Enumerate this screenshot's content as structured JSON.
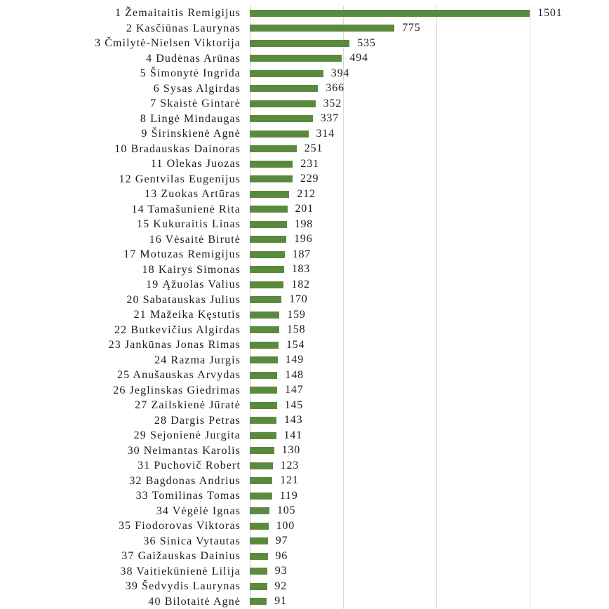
{
  "chart_data": {
    "type": "bar",
    "orientation": "horizontal",
    "title": "",
    "xlabel": "",
    "ylabel": "",
    "xlim": [
      0,
      1925
    ],
    "grid": true,
    "legend": false,
    "gridline_values": [
      500,
      1000,
      1500
    ],
    "bar_color": "#5a8a3e",
    "gridline_color": "#d9d9d9",
    "axis_line_color": "#d0d0d0",
    "text_color": "#1c1c1c",
    "value_labels_shown": true,
    "categories": [
      "1 Žemaitaitis Remigijus",
      "2 Kasčiūnas Laurynas",
      "3 Čmilytė-Nielsen Viktorija",
      "4 Dudėnas Arūnas",
      "5 Šimonytė Ingrida",
      "6 Sysas Algirdas",
      "7 Skaistė Gintarė",
      "8 Lingė Mindaugas",
      "9 Širinskienė Agnė",
      "10 Bradauskas Dainoras",
      "11 Olekas Juozas",
      "12 Gentvilas Eugenijus",
      "13 Zuokas Artūras",
      "14 Tamašunienė Rita",
      "15 Kukuraitis Linas",
      "16 Vėsaitė Birutė",
      "17 Motuzas Remigijus",
      "18 Kairys Simonas",
      "19 Ąžuolas Valius",
      "20 Sabatauskas Julius",
      "21 Mažeika Kęstutis",
      "22 Butkevičius Algirdas",
      "23 Jankūnas Jonas Rimas",
      "24 Razma Jurgis",
      "25 Anušauskas Arvydas",
      "26 Jeglinskas Giedrimas",
      "27 Zailskienė Jūratė",
      "28 Dargis Petras",
      "29 Sejonienė Jurgita",
      "30 Neimantas Karolis",
      "31 Puchovič Robert",
      "32 Bagdonas Andrius",
      "33 Tomilinas Tomas",
      "34 Vėgėlė Ignas",
      "35 Fiodorovas Viktoras",
      "36 Sinica Vytautas",
      "37 Gaižauskas Dainius",
      "38 Vaitiekūnienė Lilija",
      "39 Šedvydis Laurynas",
      "40 Bilotaitė Agnė"
    ],
    "values": [
      1501,
      775,
      535,
      494,
      394,
      366,
      352,
      337,
      314,
      251,
      231,
      229,
      212,
      201,
      198,
      196,
      187,
      183,
      182,
      170,
      159,
      158,
      154,
      149,
      148,
      147,
      145,
      143,
      141,
      130,
      123,
      121,
      119,
      105,
      100,
      97,
      96,
      93,
      92,
      91
    ]
  }
}
